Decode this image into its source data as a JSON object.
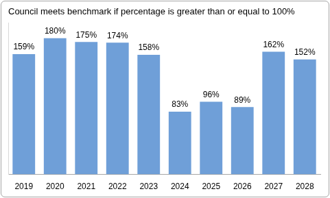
{
  "chart_data": {
    "type": "bar",
    "title": "Council meets benchmark if percentage is greater than or equal to 100%",
    "categories": [
      "2019",
      "2020",
      "2021",
      "2022",
      "2023",
      "2024",
      "2025",
      "2026",
      "2027",
      "2028"
    ],
    "values": [
      159,
      180,
      175,
      174,
      158,
      83,
      96,
      89,
      162,
      152
    ],
    "value_labels": [
      "159%",
      "180%",
      "175%",
      "174%",
      "158%",
      "83%",
      "96%",
      "89%",
      "162%",
      "152%"
    ],
    "color": "#6f9fd8",
    "ylim": [
      0,
      200
    ],
    "grid": false,
    "data_labels": true,
    "tick_labels": "x"
  }
}
